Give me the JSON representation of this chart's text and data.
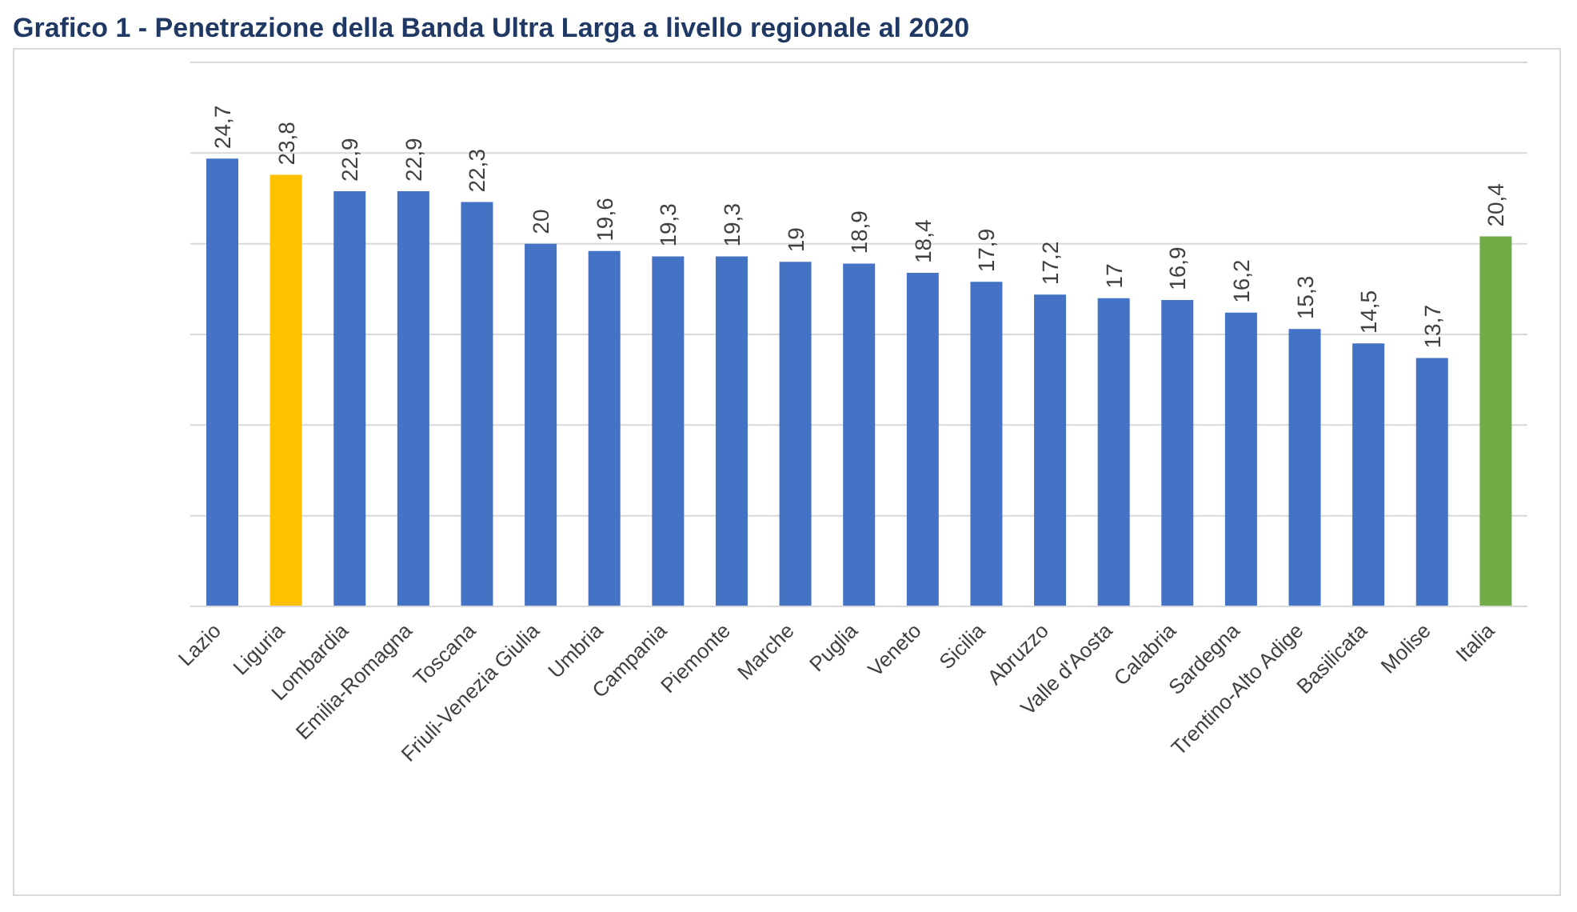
{
  "chart_data": {
    "type": "bar",
    "title": "Grafico 1 - Penetrazione della Banda Ultra Larga a livello regionale al 2020",
    "categories": [
      "Lazio",
      "Liguria",
      "Lombardia",
      "Emilia-Romagna",
      "Toscana",
      "Friuli-Venezia Giulia",
      "Umbria",
      "Campania",
      "Piemonte",
      "Marche",
      "Puglia",
      "Veneto",
      "Sicilia",
      "Abruzzo",
      "Valle d'Aosta",
      "Calabria",
      "Sardegna",
      "Trentino-Alto Adige",
      "Basilicata",
      "Molise",
      "Italia"
    ],
    "values": [
      24.7,
      23.8,
      22.9,
      22.9,
      22.3,
      20,
      19.6,
      19.3,
      19.3,
      19,
      18.9,
      18.4,
      17.9,
      17.2,
      17,
      16.9,
      16.2,
      15.3,
      14.5,
      13.7,
      20.4
    ],
    "colors": [
      "#4472c4",
      "#ffc000",
      "#4472c4",
      "#4472c4",
      "#4472c4",
      "#4472c4",
      "#4472c4",
      "#4472c4",
      "#4472c4",
      "#4472c4",
      "#4472c4",
      "#4472c4",
      "#4472c4",
      "#4472c4",
      "#4472c4",
      "#4472c4",
      "#4472c4",
      "#4472c4",
      "#4472c4",
      "#4472c4",
      "#70ad47"
    ],
    "value_labels": [
      "24,7",
      "23,8",
      "22,9",
      "22,9",
      "22,3",
      "20",
      "19,6",
      "19,3",
      "19,3",
      "19",
      "18,9",
      "18,4",
      "17,9",
      "17,2",
      "17",
      "16,9",
      "16,2",
      "15,3",
      "14,5",
      "13,7",
      "20,4"
    ],
    "grid": "y",
    "tick_labels": "x"
  }
}
